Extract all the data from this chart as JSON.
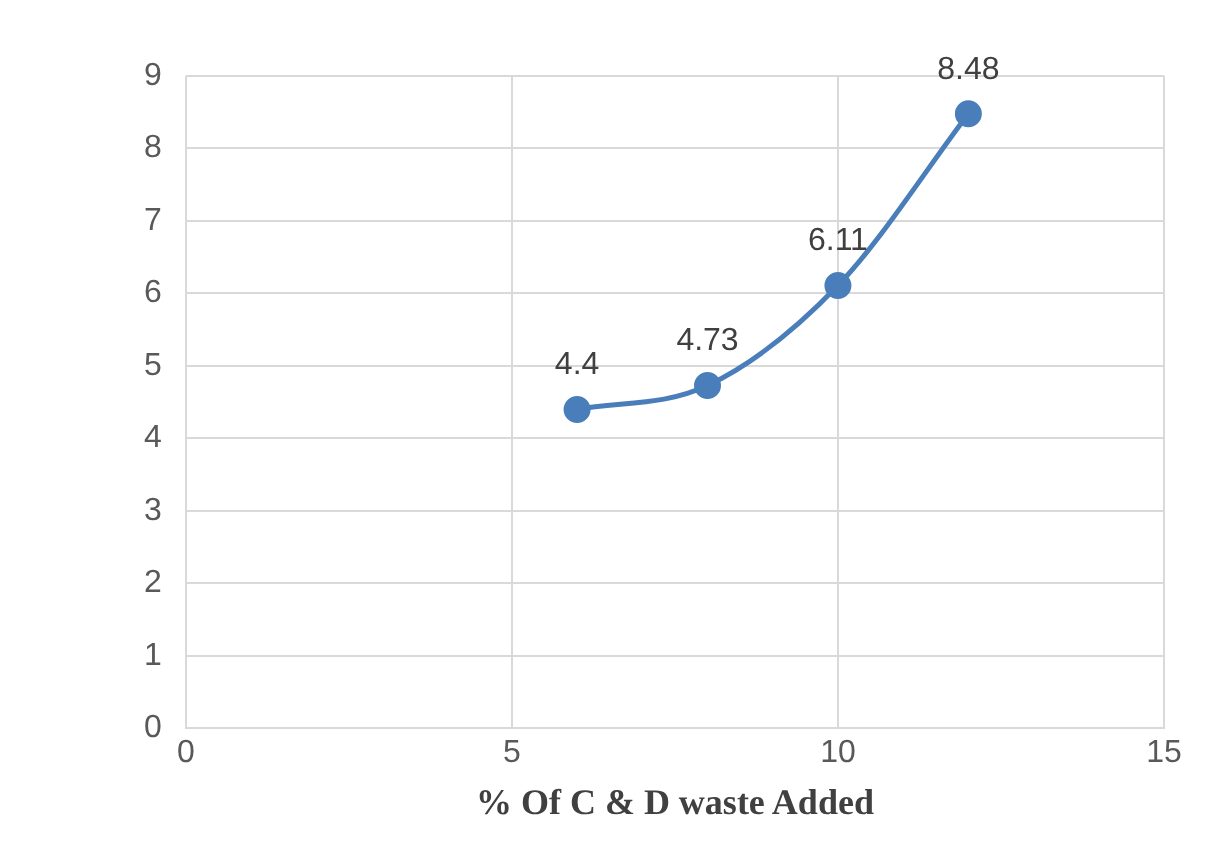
{
  "chart_data": {
    "type": "line",
    "xlabel": "% Of C & D waste Added",
    "x": [
      6,
      8,
      10,
      12
    ],
    "series": [
      {
        "color": "#4a7ebb",
        "values": [
          4.4,
          4.73,
          6.11,
          8.48
        ]
      }
    ],
    "xlim": [
      0,
      15
    ],
    "xticks": [
      0,
      5,
      10,
      15
    ],
    "ylim": [
      0,
      9
    ],
    "yticks": [
      0,
      1,
      2,
      3,
      4,
      5,
      6,
      7,
      8,
      9
    ],
    "grid": true,
    "legend": false,
    "marker": "circle",
    "line_style": "solid",
    "data_labels": true
  }
}
